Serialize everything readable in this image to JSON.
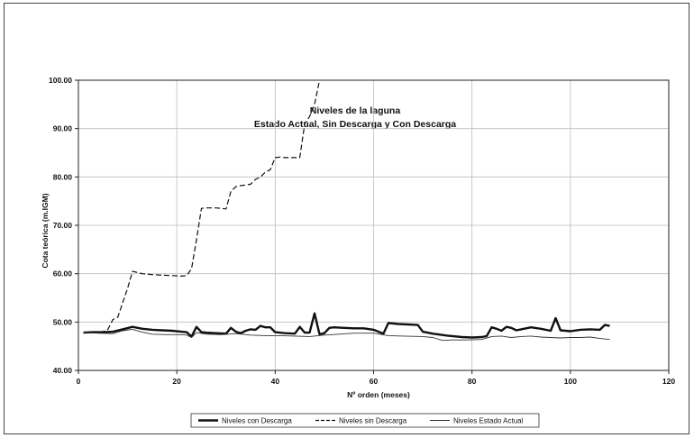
{
  "chart_data": {
    "type": "line",
    "title": "Niveles de la laguna",
    "subtitle": "Estado Actual, Sin Descarga y Con Descarga",
    "xlabel": "Nº orden (meses)",
    "ylabel": "Cota teórica (m.IGM)",
    "xlim": [
      0,
      120
    ],
    "ylim": [
      40,
      100
    ],
    "x_ticks": [
      "0",
      "20",
      "40",
      "60",
      "80",
      "100",
      "120"
    ],
    "y_ticks": [
      "40.00",
      "50.00",
      "60.00",
      "70.00",
      "80.00",
      "90.00",
      "100.00"
    ],
    "grid": true,
    "legend_position": "bottom",
    "series": [
      {
        "name": "Niveles con Descarga",
        "style": "thick",
        "color": "#111111",
        "x": [
          1,
          3,
          5,
          7,
          9,
          11,
          13,
          15,
          17,
          19,
          21,
          22,
          23,
          24,
          25,
          26,
          28,
          30,
          31,
          32,
          33,
          34,
          35,
          36,
          37,
          38,
          39,
          40,
          42,
          44,
          45,
          46,
          47,
          48,
          49,
          50,
          51,
          52,
          54,
          56,
          58,
          60,
          62,
          63,
          65,
          67,
          69,
          70,
          72,
          75,
          78,
          80,
          82,
          83,
          84,
          85,
          86,
          87,
          88,
          89,
          90,
          92,
          94,
          96,
          97,
          98,
          100,
          102,
          104,
          106,
          107,
          108
        ],
        "y": [
          47.8,
          47.9,
          47.9,
          48.0,
          48.5,
          49.0,
          48.6,
          48.4,
          48.3,
          48.2,
          48.0,
          47.9,
          47.0,
          49.0,
          47.9,
          47.8,
          47.7,
          47.6,
          48.8,
          48.0,
          47.7,
          48.2,
          48.5,
          48.4,
          49.2,
          48.9,
          48.9,
          47.9,
          47.7,
          47.6,
          49.0,
          47.8,
          47.8,
          51.8,
          47.5,
          47.7,
          48.8,
          48.9,
          48.8,
          48.7,
          48.7,
          48.4,
          47.6,
          49.8,
          49.6,
          49.5,
          49.4,
          48.0,
          47.6,
          47.2,
          46.9,
          46.8,
          46.9,
          47.1,
          48.9,
          48.6,
          48.2,
          49.0,
          48.8,
          48.3,
          48.5,
          48.9,
          48.6,
          48.2,
          50.8,
          48.3,
          48.1,
          48.4,
          48.5,
          48.4,
          49.4,
          49.2
        ]
      },
      {
        "name": "Niveles sin Descarga",
        "style": "dashed",
        "color": "#111111",
        "x": [
          1,
          3,
          5,
          6,
          7,
          8,
          9,
          10,
          11,
          13,
          15,
          17,
          19,
          21,
          22,
          23,
          24,
          25,
          26,
          28,
          30,
          31,
          32,
          33,
          35,
          36,
          37,
          38,
          39,
          40,
          41,
          42,
          45,
          46,
          47,
          48,
          49
        ],
        "y": [
          47.8,
          47.9,
          48.0,
          48.5,
          50.5,
          51.0,
          54.0,
          57.0,
          60.5,
          60.0,
          59.8,
          59.7,
          59.6,
          59.5,
          59.6,
          61.0,
          67.0,
          73.5,
          73.6,
          73.6,
          73.4,
          77.0,
          78.0,
          78.2,
          78.5,
          79.5,
          80.0,
          81.0,
          81.5,
          84.0,
          84.1,
          84.0,
          84.0,
          91.0,
          92.5,
          95.0,
          100.0
        ]
      },
      {
        "name": "Niveles Estado Actual",
        "style": "thin",
        "color": "#333333",
        "x": [
          1,
          4,
          7,
          9,
          11,
          13,
          15,
          18,
          21,
          22,
          23,
          24,
          26,
          29,
          32,
          35,
          38,
          41,
          44,
          47,
          50,
          53,
          56,
          60,
          63,
          66,
          70,
          72,
          74,
          76,
          79,
          82,
          84,
          86,
          88,
          90,
          92,
          94,
          96,
          98,
          100,
          102,
          104,
          106,
          108
        ],
        "y": [
          47.8,
          47.7,
          47.6,
          48.2,
          48.5,
          47.9,
          47.5,
          47.4,
          47.4,
          47.3,
          46.8,
          47.8,
          47.5,
          47.4,
          47.6,
          47.3,
          47.2,
          47.2,
          47.1,
          47.0,
          47.3,
          47.5,
          47.7,
          47.7,
          47.2,
          47.1,
          47.0,
          46.8,
          46.2,
          46.3,
          46.3,
          46.4,
          47.0,
          47.1,
          46.8,
          47.0,
          47.1,
          46.9,
          46.8,
          46.7,
          46.8,
          46.8,
          46.9,
          46.6,
          46.4
        ]
      }
    ]
  }
}
